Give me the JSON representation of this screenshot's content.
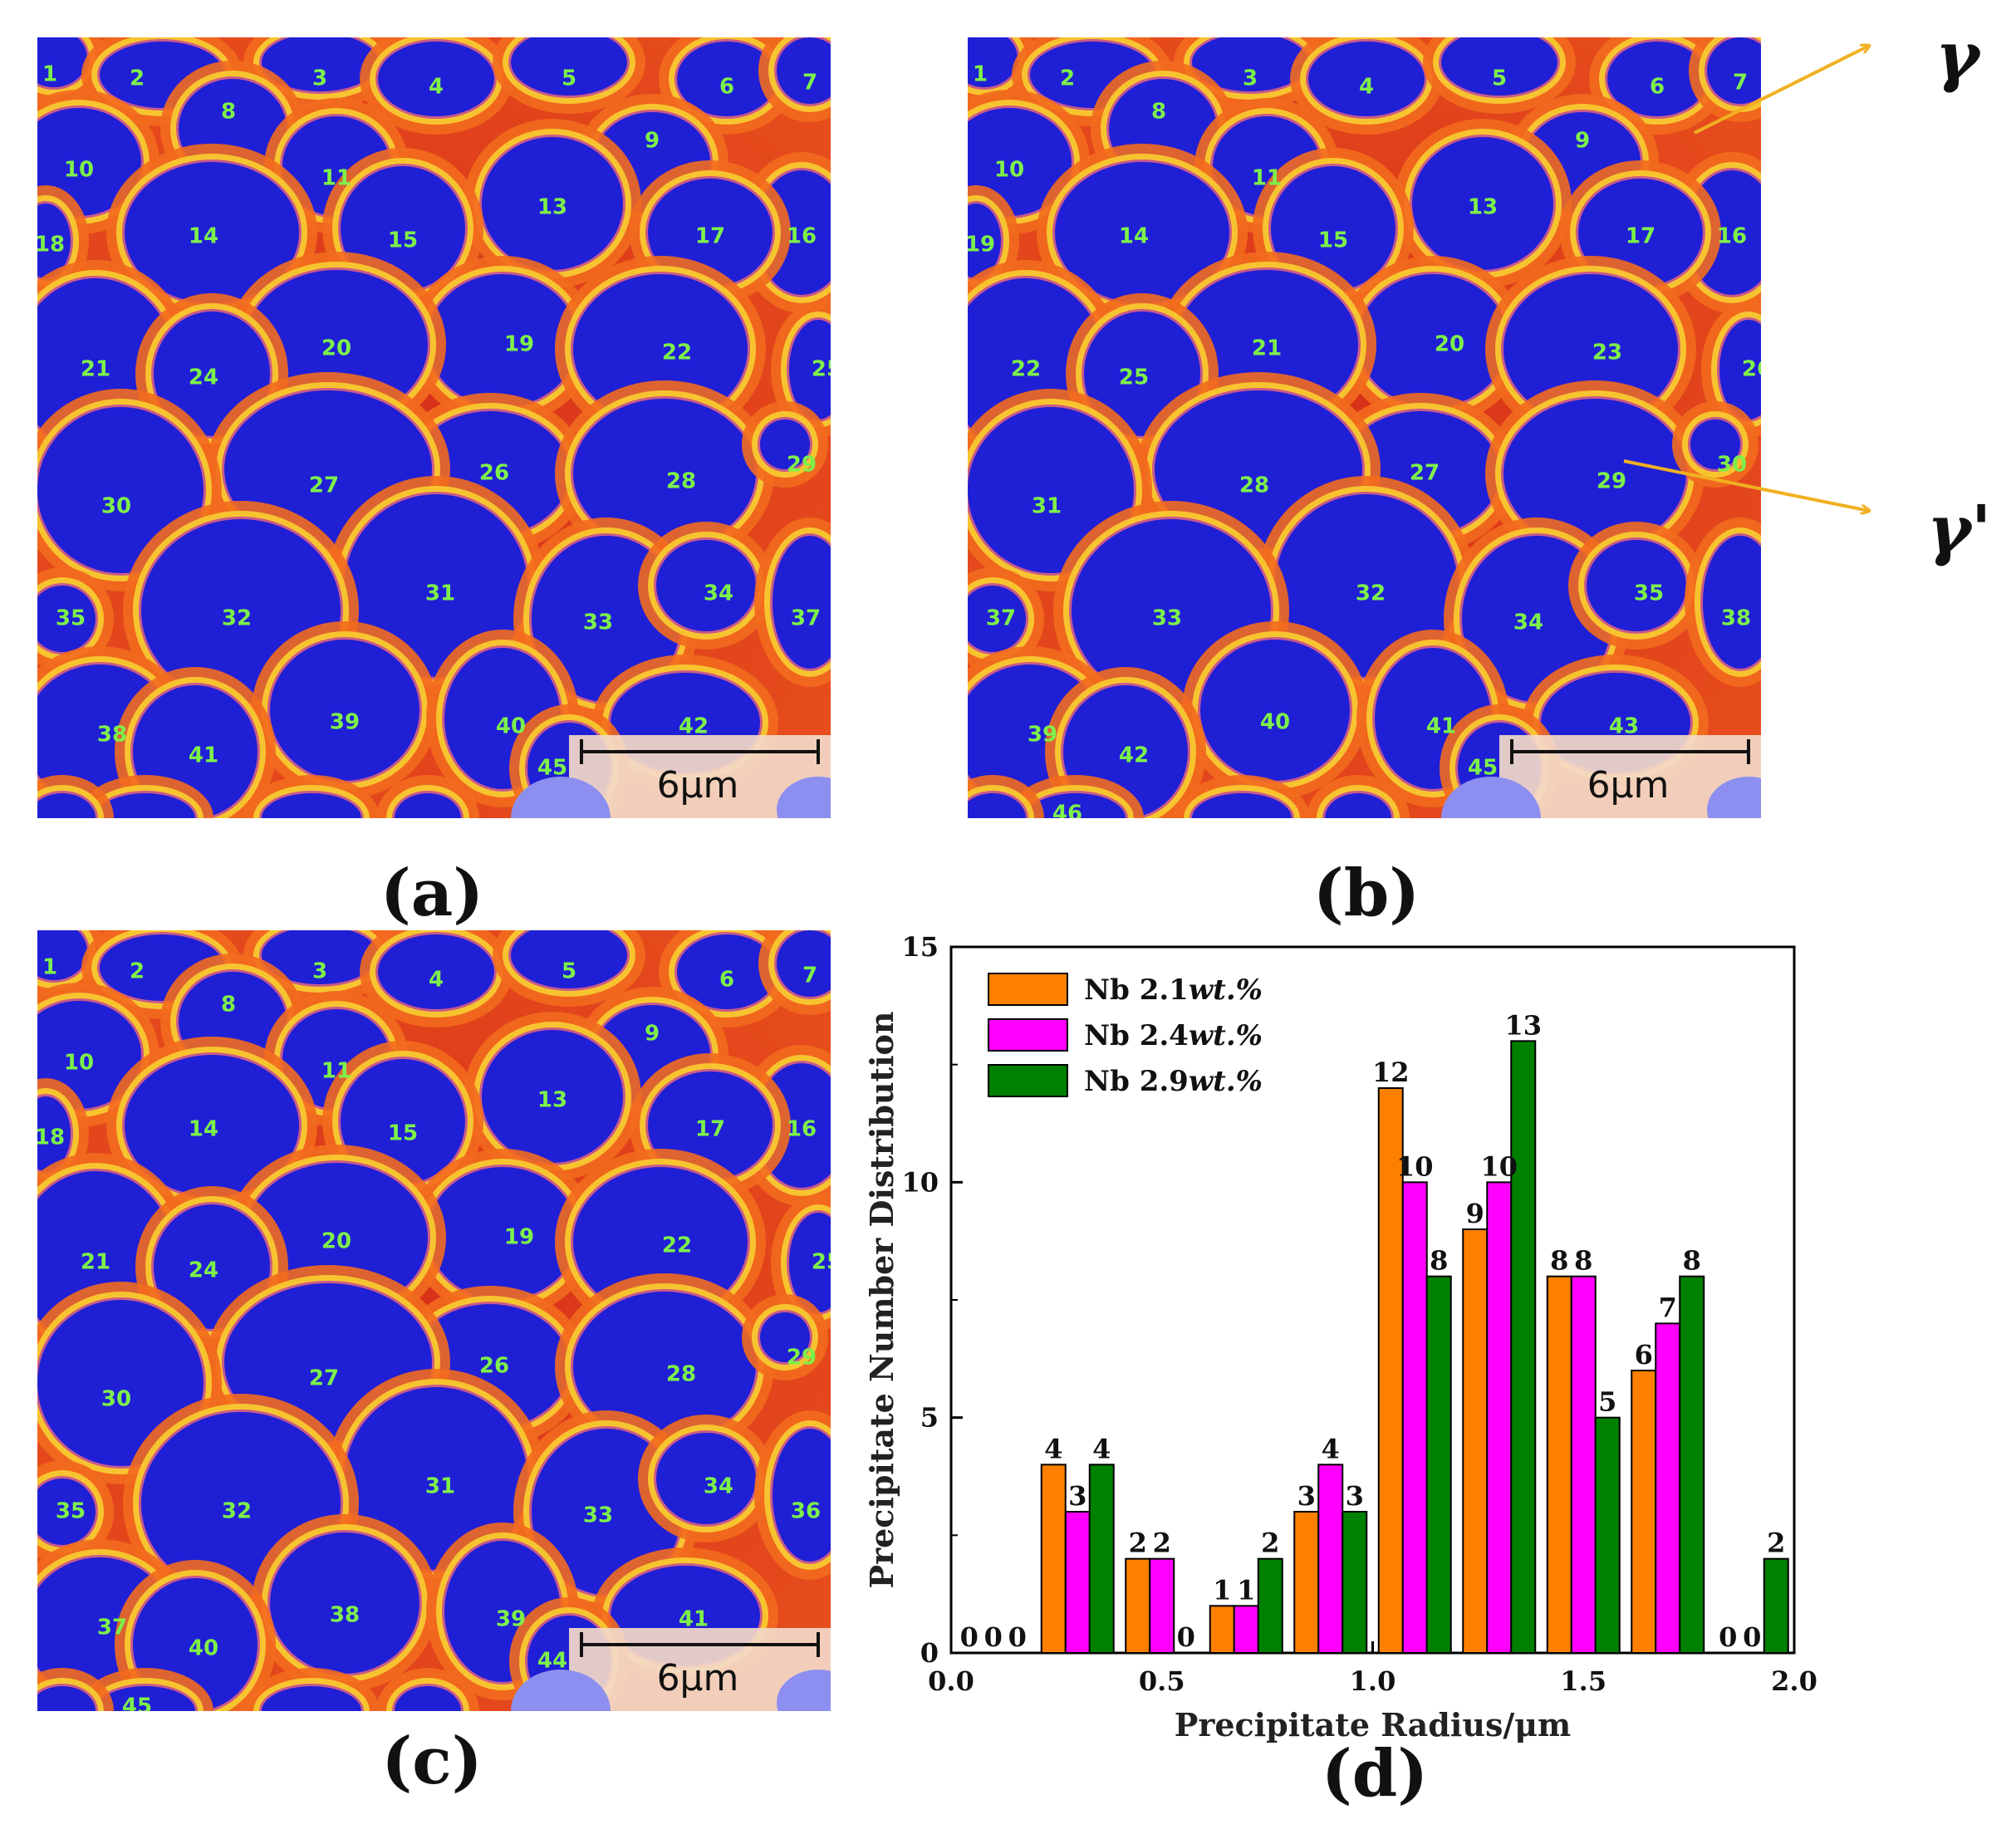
{
  "panels": [
    {
      "id": "a",
      "caption": "(a)",
      "scale_bar": "6μm",
      "labels": [
        "1",
        "2",
        "3",
        "4",
        "5",
        "6",
        "7",
        "8",
        "9",
        "10",
        "11",
        "13",
        "14",
        "15",
        "16",
        "17",
        "18",
        "19",
        "20",
        "21",
        "22",
        "24",
        "25",
        "26",
        "27",
        "28",
        "29",
        "30",
        "31",
        "32",
        "33",
        "34",
        "35",
        "37",
        "38",
        "39",
        "40",
        "41",
        "42",
        "45"
      ]
    },
    {
      "id": "b",
      "caption": "(b)",
      "scale_bar": "6μm",
      "labels": [
        "1",
        "2",
        "3",
        "4",
        "5",
        "6",
        "7",
        "8",
        "9",
        "10",
        "11",
        "13",
        "14",
        "15",
        "16",
        "17",
        "19",
        "20",
        "21",
        "22",
        "23",
        "25",
        "26",
        "27",
        "28",
        "29",
        "30",
        "31",
        "32",
        "33",
        "34",
        "35",
        "37",
        "38",
        "39",
        "40",
        "41",
        "42",
        "43",
        "45",
        "46"
      ]
    },
    {
      "id": "c",
      "caption": "(c)",
      "scale_bar": "6μm",
      "labels": [
        "1",
        "2",
        "3",
        "4",
        "5",
        "6",
        "7",
        "8",
        "9",
        "10",
        "11",
        "13",
        "14",
        "15",
        "16",
        "17",
        "18",
        "19",
        "20",
        "21",
        "22",
        "24",
        "25",
        "26",
        "27",
        "28",
        "29",
        "30",
        "31",
        "32",
        "33",
        "34",
        "35",
        "36",
        "37",
        "38",
        "39",
        "40",
        "41",
        "44",
        "45"
      ]
    }
  ],
  "annotations": {
    "gamma": "γ",
    "gamma_prime": "γ'"
  },
  "chart_caption": "(d)",
  "colors": {
    "matrix": "#e8431c",
    "precipitate": "#1f1fd6",
    "rim": "#f7c430",
    "label": "#7df04a",
    "arrow": "#f0b020"
  },
  "chart_data": {
    "type": "bar",
    "title": "",
    "xlabel": "Precipitate Radius/μm",
    "ylabel": "Precipitate Number Distribution",
    "xlim": [
      0.0,
      2.0
    ],
    "ylim": [
      0,
      15
    ],
    "x_ticks": [
      "0.0",
      "0.5",
      "1.0",
      "1.5",
      "2.0"
    ],
    "y_ticks": [
      "0",
      "5",
      "10",
      "15"
    ],
    "legend_position": "top-left",
    "categories": [
      "0.1",
      "0.3",
      "0.5",
      "0.7",
      "0.9",
      "1.1",
      "1.3",
      "1.5",
      "1.7",
      "1.9"
    ],
    "series": [
      {
        "name": "Nb 2.1",
        "unit": "wt.%",
        "color": "#ff8000",
        "values": [
          0,
          4,
          2,
          1,
          3,
          12,
          9,
          8,
          6,
          0
        ]
      },
      {
        "name": "Nb 2.4",
        "unit": "wt.%",
        "color": "#ff00ff",
        "values": [
          0,
          3,
          2,
          1,
          4,
          10,
          10,
          8,
          7,
          0
        ]
      },
      {
        "name": "Nb 2.9",
        "unit": "wt.%",
        "color": "#008000",
        "values": [
          0,
          4,
          0,
          2,
          3,
          8,
          13,
          5,
          8,
          2
        ]
      }
    ]
  }
}
